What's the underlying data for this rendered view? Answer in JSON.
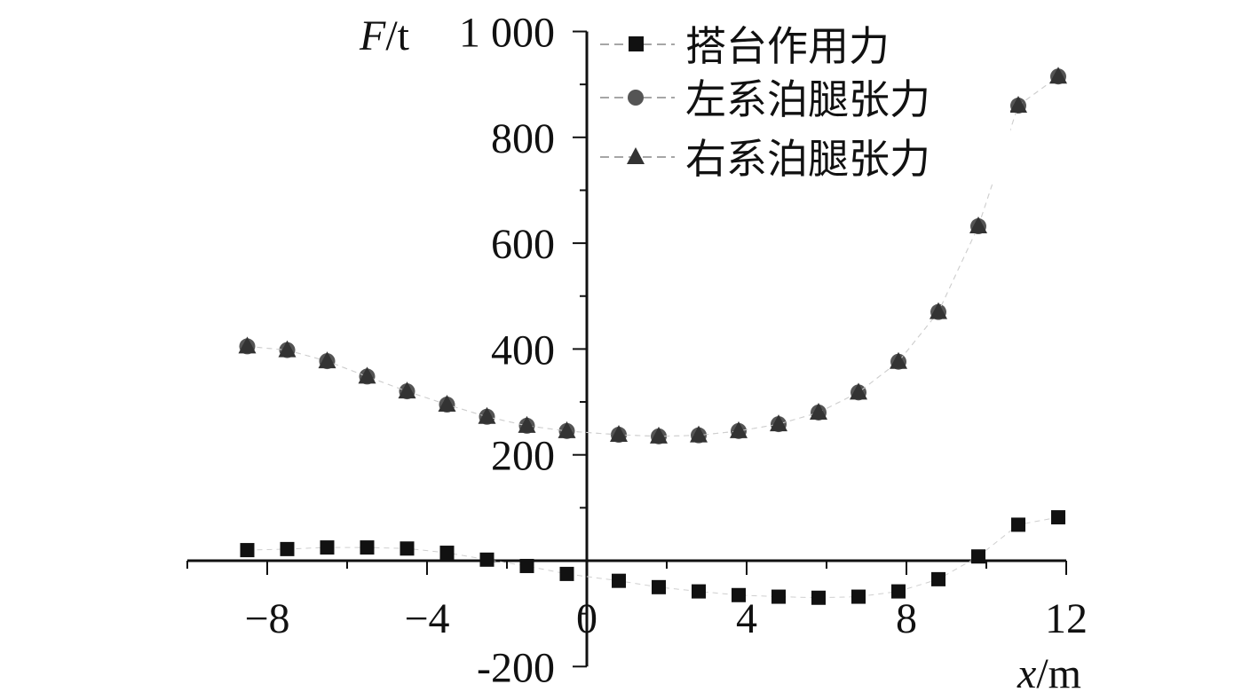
{
  "chart_data": {
    "type": "scatter",
    "x_axis": {
      "ticks": [
        -8,
        -4,
        0,
        4,
        8,
        12
      ],
      "tick_labels": [
        "−8",
        "−4",
        "0",
        "4",
        "8",
        "12"
      ],
      "range": [
        -10,
        12
      ],
      "label_italic": "x",
      "label_unit": "/m"
    },
    "y_axis": {
      "ticks": [
        -200,
        200,
        400,
        600,
        800,
        1000
      ],
      "tick_labels": [
        "-200",
        "200",
        "400",
        "600",
        "800",
        "1 000"
      ],
      "range": [
        -200,
        1000
      ],
      "label_italic": "F",
      "label_unit": "/t"
    },
    "series": [
      {
        "name": "搭台作用力",
        "marker": "square",
        "color": "#111111",
        "x": [
          -8.5,
          -7.5,
          -6.5,
          -5.5,
          -4.5,
          -3.5,
          -2.5,
          -1.5,
          -0.5,
          0.8,
          1.8,
          2.8,
          3.8,
          4.8,
          5.8,
          6.8,
          7.8,
          8.8,
          9.8,
          10.8,
          11.8
        ],
        "y": [
          20,
          22,
          25,
          25,
          23,
          15,
          2,
          -10,
          -25,
          -38,
          -50,
          -58,
          -65,
          -68,
          -70,
          -68,
          -58,
          -35,
          8,
          68,
          82
        ]
      },
      {
        "name": "左系泊腿张力",
        "marker": "circle",
        "color": "#555555",
        "x": [
          -8.5,
          -7.5,
          -6.5,
          -5.5,
          -4.5,
          -3.5,
          -2.5,
          -1.5,
          -0.5,
          0.8,
          1.8,
          2.8,
          3.8,
          4.8,
          5.8,
          6.8,
          7.8,
          8.8,
          9.8,
          10.8,
          11.8
        ],
        "y": [
          405,
          398,
          377,
          348,
          320,
          295,
          272,
          255,
          245,
          238,
          235,
          237,
          245,
          258,
          280,
          318,
          376,
          470,
          632,
          860,
          915
        ]
      },
      {
        "name": "右系泊腿张力",
        "marker": "triangle",
        "color": "#333333",
        "x": [
          -8.5,
          -7.5,
          -6.5,
          -5.5,
          -4.5,
          -3.5,
          -2.5,
          -1.5,
          -0.5,
          0.8,
          1.8,
          2.8,
          3.8,
          4.8,
          5.8,
          6.8,
          7.8,
          8.8,
          9.8,
          10.8,
          11.8
        ],
        "y": [
          405,
          398,
          377,
          348,
          320,
          295,
          272,
          255,
          245,
          238,
          235,
          237,
          245,
          258,
          280,
          318,
          376,
          470,
          632,
          860,
          915
        ]
      }
    ],
    "legend_position": "top-right",
    "grid": false
  }
}
